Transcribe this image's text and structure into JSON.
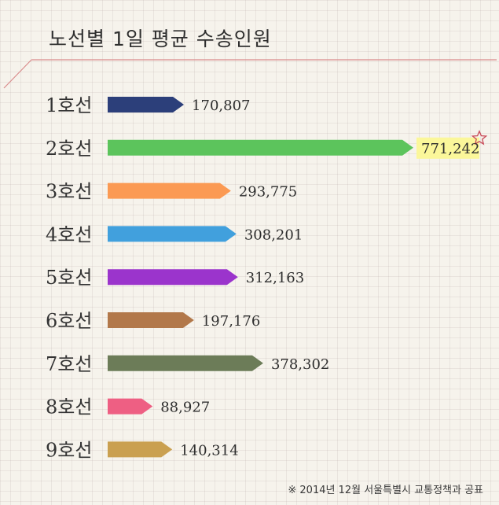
{
  "chart_data": {
    "type": "bar",
    "title": "노선별 1일 평균 수송인원",
    "categories": [
      "1호선",
      "2호선",
      "3호선",
      "4호선",
      "5호선",
      "6호선",
      "7호선",
      "8호선",
      "9호선"
    ],
    "values": [
      170807,
      771242,
      293775,
      308201,
      312163,
      197176,
      378302,
      88927,
      140314
    ],
    "value_labels": [
      "170,807",
      "771,242",
      "293,775",
      "308,201",
      "312,163",
      "197,176",
      "378,302",
      "88,927",
      "140,314"
    ],
    "colors": [
      "#2c3f7a",
      "#5cc45c",
      "#fb9a53",
      "#41a0dd",
      "#9b34cc",
      "#b2784a",
      "#6c7c58",
      "#ee5f83",
      "#caa050"
    ],
    "highlight_index": 1,
    "highlight_color": "#fbf79a",
    "star_icon": "star-icon",
    "footnote": "※ 2014년 12월 서울특별시 교통정책과 공표"
  }
}
